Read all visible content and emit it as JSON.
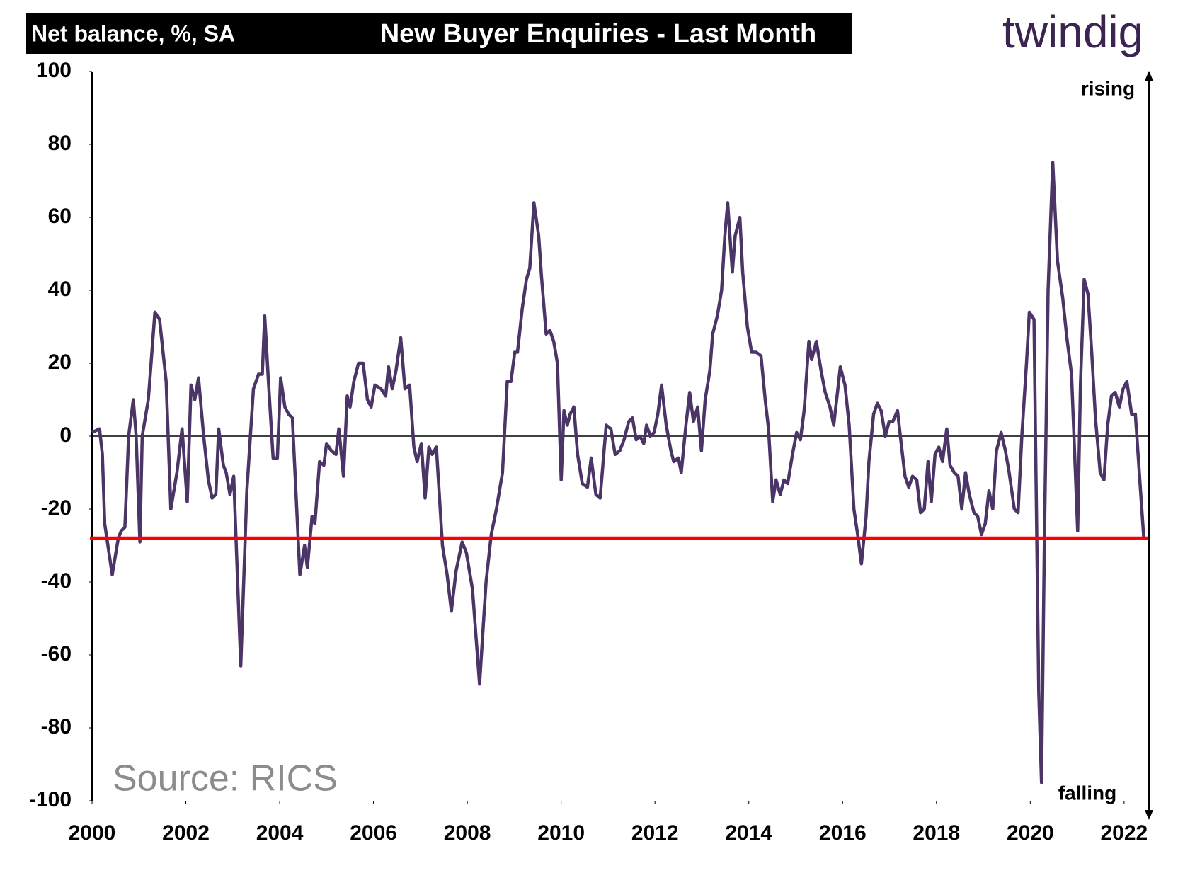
{
  "chart_data": {
    "type": "line",
    "subtitle": "Net balance, %, SA",
    "title": "New Buyer Enquiries - Last Month",
    "logo": "twindig",
    "annotations": [
      "rising",
      "falling"
    ],
    "source": "Source: RICS",
    "color": "#4b3466",
    "reference_line": {
      "value": -28,
      "color": "#ff0000"
    },
    "xlim": [
      2000,
      2022.5
    ],
    "xticks": [
      2000,
      2002,
      2004,
      2006,
      2008,
      2010,
      2012,
      2014,
      2016,
      2018,
      2020,
      2022
    ],
    "ylim": [
      -100,
      100
    ],
    "yticks": [
      100,
      80,
      60,
      40,
      20,
      0,
      -20,
      -40,
      -60,
      -80,
      -100
    ],
    "x": [
      2000,
      2000.16,
      2000.22,
      2000.27,
      2000.43,
      2000.56,
      2000.62,
      2000.7,
      2000.78,
      2000.88,
      2000.94,
      2001.02,
      2001.07,
      2001.2,
      2001.34,
      2001.44,
      2001.58,
      2001.68,
      2001.81,
      2001.92,
      2002.03,
      2002.11,
      2002.19,
      2002.27,
      2002.38,
      2002.48,
      2002.56,
      2002.64,
      2002.7,
      2002.8,
      2002.86,
      2002.94,
      2003.02,
      2003.17,
      2003.3,
      2003.44,
      2003.55,
      2003.63,
      2003.68,
      2003.76,
      2003.86,
      2003.95,
      2004.02,
      2004.11,
      2004.19,
      2004.27,
      2004.43,
      2004.53,
      2004.59,
      2004.69,
      2004.75,
      2004.85,
      2004.94,
      2005.0,
      2005.1,
      2005.2,
      2005.26,
      2005.36,
      2005.44,
      2005.5,
      2005.58,
      2005.68,
      2005.78,
      2005.87,
      2005.95,
      2006.03,
      2006.16,
      2006.26,
      2006.32,
      2006.4,
      2006.48,
      2006.58,
      2006.67,
      2006.77,
      2006.86,
      2006.93,
      2007.02,
      2007.1,
      2007.18,
      2007.25,
      2007.34,
      2007.47,
      2007.57,
      2007.66,
      2007.76,
      2007.89,
      2007.98,
      2008.11,
      2008.26,
      2008.4,
      2008.51,
      2008.62,
      2008.75,
      2008.85,
      2008.93,
      2009.01,
      2009.07,
      2009.17,
      2009.26,
      2009.33,
      2009.42,
      2009.52,
      2009.58,
      2009.68,
      2009.76,
      2009.84,
      2009.92,
      2010.0,
      2010.06,
      2010.13,
      2010.19,
      2010.27,
      2010.35,
      2010.45,
      2010.56,
      2010.64,
      2010.74,
      2010.83,
      2010.96,
      2011.06,
      2011.15,
      2011.25,
      2011.34,
      2011.44,
      2011.52,
      2011.6,
      2011.68,
      2011.76,
      2011.82,
      2011.9,
      2011.98,
      2012.06,
      2012.14,
      2012.24,
      2012.34,
      2012.4,
      2012.5,
      2012.56,
      2012.66,
      2012.74,
      2012.82,
      2012.91,
      2012.99,
      2013.07,
      2013.17,
      2013.23,
      2013.33,
      2013.42,
      2013.49,
      2013.55,
      2013.65,
      2013.71,
      2013.81,
      2013.87,
      2013.97,
      2014.06,
      2014.16,
      2014.26,
      2014.35,
      2014.42,
      2014.51,
      2014.58,
      2014.67,
      2014.75,
      2014.83,
      2014.93,
      2015.02,
      2015.1,
      2015.18,
      2015.28,
      2015.34,
      2015.44,
      2015.54,
      2015.63,
      2015.73,
      2015.81,
      2015.89,
      2015.95,
      2016.05,
      2016.14,
      2016.24,
      2016.32,
      2016.4,
      2016.5,
      2016.56,
      2016.66,
      2016.74,
      2016.82,
      2016.91,
      2016.99,
      2017.07,
      2017.17,
      2017.23,
      2017.33,
      2017.41,
      2017.49,
      2017.58,
      2017.66,
      2017.74,
      2017.82,
      2017.89,
      2017.97,
      2018.05,
      2018.13,
      2018.22,
      2018.29,
      2018.38,
      2018.46,
      2018.54,
      2018.62,
      2018.7,
      2018.8,
      2018.88,
      2018.96,
      2019.04,
      2019.12,
      2019.2,
      2019.28,
      2019.38,
      2019.47,
      2019.55,
      2019.66,
      2019.74,
      2019.82,
      2019.92,
      2019.98,
      2020.08,
      2020.18,
      2020.24,
      2020.3,
      2020.38,
      2020.48,
      2020.58,
      2020.69,
      2020.78,
      2020.88,
      2021.01,
      2021.07,
      2021.15,
      2021.23,
      2021.31,
      2021.39,
      2021.49,
      2021.57,
      2021.65,
      2021.73,
      2021.81,
      2021.9,
      2021.98,
      2022.06,
      2022.16,
      2022.24,
      2022.35,
      2022.42
    ],
    "values": [
      1,
      2,
      -5,
      -24,
      -38,
      -28,
      -26,
      -25,
      0,
      10,
      0,
      -29,
      0,
      10,
      34,
      32,
      15,
      -20,
      -10,
      2,
      -18,
      14,
      10,
      16,
      0,
      -12,
      -17,
      -16,
      2,
      -8,
      -10,
      -16,
      -11,
      -63,
      -15,
      13,
      17,
      17,
      33,
      15,
      -6,
      -6,
      16,
      8,
      6,
      5,
      -38,
      -30,
      -36,
      -22,
      -24,
      -7,
      -8,
      -2,
      -4,
      -5,
      2,
      -11,
      11,
      8,
      15,
      20,
      20,
      10,
      8,
      14,
      13,
      11,
      19,
      13,
      18,
      27,
      13,
      14,
      -3,
      -7,
      -2,
      -17,
      -3,
      -5,
      -3,
      -30,
      -38,
      -48,
      -37,
      -29,
      -32,
      -42,
      -68,
      -40,
      -27,
      -20,
      -10,
      15,
      15,
      23,
      23,
      35,
      43,
      46,
      64,
      55,
      44,
      28,
      29,
      26,
      20,
      -12,
      7,
      3,
      6,
      8,
      -5,
      -13,
      -14,
      -6,
      -16,
      -17,
      3,
      2,
      -5,
      -4,
      -1,
      4,
      5,
      -1,
      0,
      -2,
      3,
      0,
      1,
      6,
      14,
      3,
      -4,
      -7,
      -6,
      -10,
      3,
      12,
      4,
      8,
      -4,
      10,
      18,
      28,
      33,
      40,
      55,
      64,
      45,
      55,
      60,
      45,
      30,
      23,
      23,
      22,
      10,
      2,
      -18,
      -12,
      -16,
      -12,
      -13,
      -5,
      1,
      -1,
      7,
      26,
      21,
      26,
      18,
      12,
      8,
      3,
      12,
      19,
      14,
      3,
      -20,
      -27,
      -35,
      -22,
      -7,
      6,
      9,
      7,
      0,
      4,
      4,
      7,
      0,
      -11,
      -14,
      -11,
      -12,
      -21,
      -20,
      -7,
      -18,
      -5,
      -3,
      -7,
      2,
      -8,
      -10,
      -11,
      -20,
      -10,
      -16,
      -21,
      -22,
      -27,
      -24,
      -15,
      -20,
      -4,
      1,
      -4,
      -10,
      -20,
      -21,
      0,
      20,
      34,
      32,
      -70,
      -95,
      -30,
      40,
      75,
      48,
      38,
      27,
      17,
      -26,
      14,
      43,
      39,
      23,
      5,
      -10,
      -12,
      3,
      11,
      12,
      8,
      13,
      15,
      6,
      6,
      -15,
      -28
    ]
  }
}
